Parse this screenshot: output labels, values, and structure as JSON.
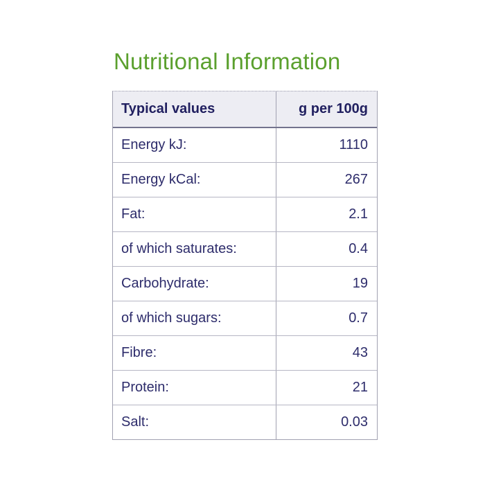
{
  "page": {
    "background": "#ffffff"
  },
  "title": {
    "text": "Nutritional Information",
    "color": "#5ba02e"
  },
  "table": {
    "header": {
      "col1": "Typical values",
      "col2": "g per 100g",
      "background": "#ededf3",
      "text_color": "#212060"
    },
    "rows": [
      {
        "label": "Energy kJ:",
        "value": "1110"
      },
      {
        "label": "Energy kCal:",
        "value": "267"
      },
      {
        "label": "Fat:",
        "value": "2.1"
      },
      {
        "label": "of which saturates:",
        "value": "0.4"
      },
      {
        "label": "Carbohydrate:",
        "value": "19"
      },
      {
        "label": "of which sugars:",
        "value": "0.7"
      },
      {
        "label": "Fibre:",
        "value": "43"
      },
      {
        "label": "Protein:",
        "value": "21"
      },
      {
        "label": "Salt:",
        "value": "0.03"
      }
    ],
    "colors": {
      "outer_border": "#a1a1b1",
      "row_separator": "#b6b6c4",
      "header_underline": "#73738e",
      "body_text": "#2d2c6b"
    }
  },
  "chart_data": {
    "type": "table",
    "title": "Nutritional Information",
    "columns": [
      "Typical values",
      "g per 100g"
    ],
    "categories": [
      "Energy kJ",
      "Energy kCal",
      "Fat",
      "of which saturates",
      "Carbohydrate",
      "of which sugars",
      "Fibre",
      "Protein",
      "Salt"
    ],
    "values": [
      1110,
      267,
      2.1,
      0.4,
      19,
      0.7,
      43,
      21,
      0.03
    ]
  }
}
